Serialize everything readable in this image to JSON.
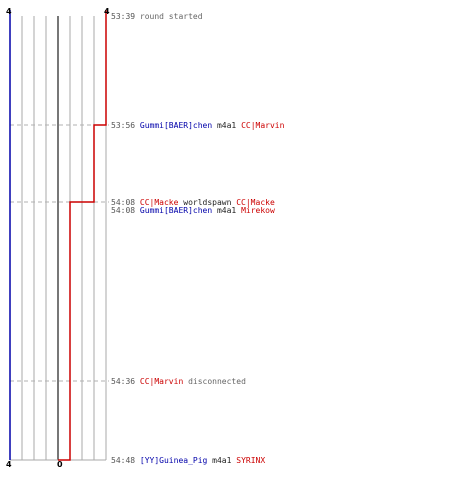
{
  "colors": {
    "blue_team": "#0000aa",
    "red_team": "#cc0000",
    "time": "#555555",
    "grid": "#aaaaaa",
    "dash": "#b0b0b0",
    "text": "#222222",
    "center_line": "#555555"
  },
  "score_labels": {
    "top_left": "4",
    "top_right": "4",
    "bottom_left": "4",
    "bottom_right": "0"
  },
  "events": [
    {
      "time": "53:39",
      "segments": [
        {
          "text": "round started",
          "color": "#666666"
        }
      ]
    },
    {
      "time": "53:56",
      "segments": [
        {
          "text": "Gummi[BAER]chen",
          "color": "#0000aa"
        },
        {
          "text": " m4a1 ",
          "color": "#222222"
        },
        {
          "text": "CC|Marvin",
          "color": "#cc0000"
        }
      ]
    },
    {
      "time": "54:08",
      "segments": [
        {
          "text": "CC|Macke",
          "color": "#cc0000"
        },
        {
          "text": " worldspawn ",
          "color": "#222222"
        },
        {
          "text": "CC|Macke",
          "color": "#cc0000"
        }
      ]
    },
    {
      "time": "54:08",
      "segments": [
        {
          "text": "Gummi[BAER]chen",
          "color": "#0000aa"
        },
        {
          "text": " m4a1 ",
          "color": "#222222"
        },
        {
          "text": "Mirekow",
          "color": "#cc0000"
        }
      ]
    },
    {
      "time": "54:36",
      "segments": [
        {
          "text": "CC|Marvin",
          "color": "#cc0000"
        },
        {
          "text": " disconnected",
          "color": "#666666"
        }
      ]
    },
    {
      "time": "54:48",
      "segments": [
        {
          "text": "[YY]Guinea_Pig",
          "color": "#0000aa"
        },
        {
          "text": " m4a1 ",
          "color": "#222222"
        },
        {
          "text": "SYRINX",
          "color": "#cc0000"
        }
      ]
    }
  ],
  "red_team_count": [
    4,
    3,
    2,
    0
  ],
  "blue_team_count": [
    4
  ]
}
